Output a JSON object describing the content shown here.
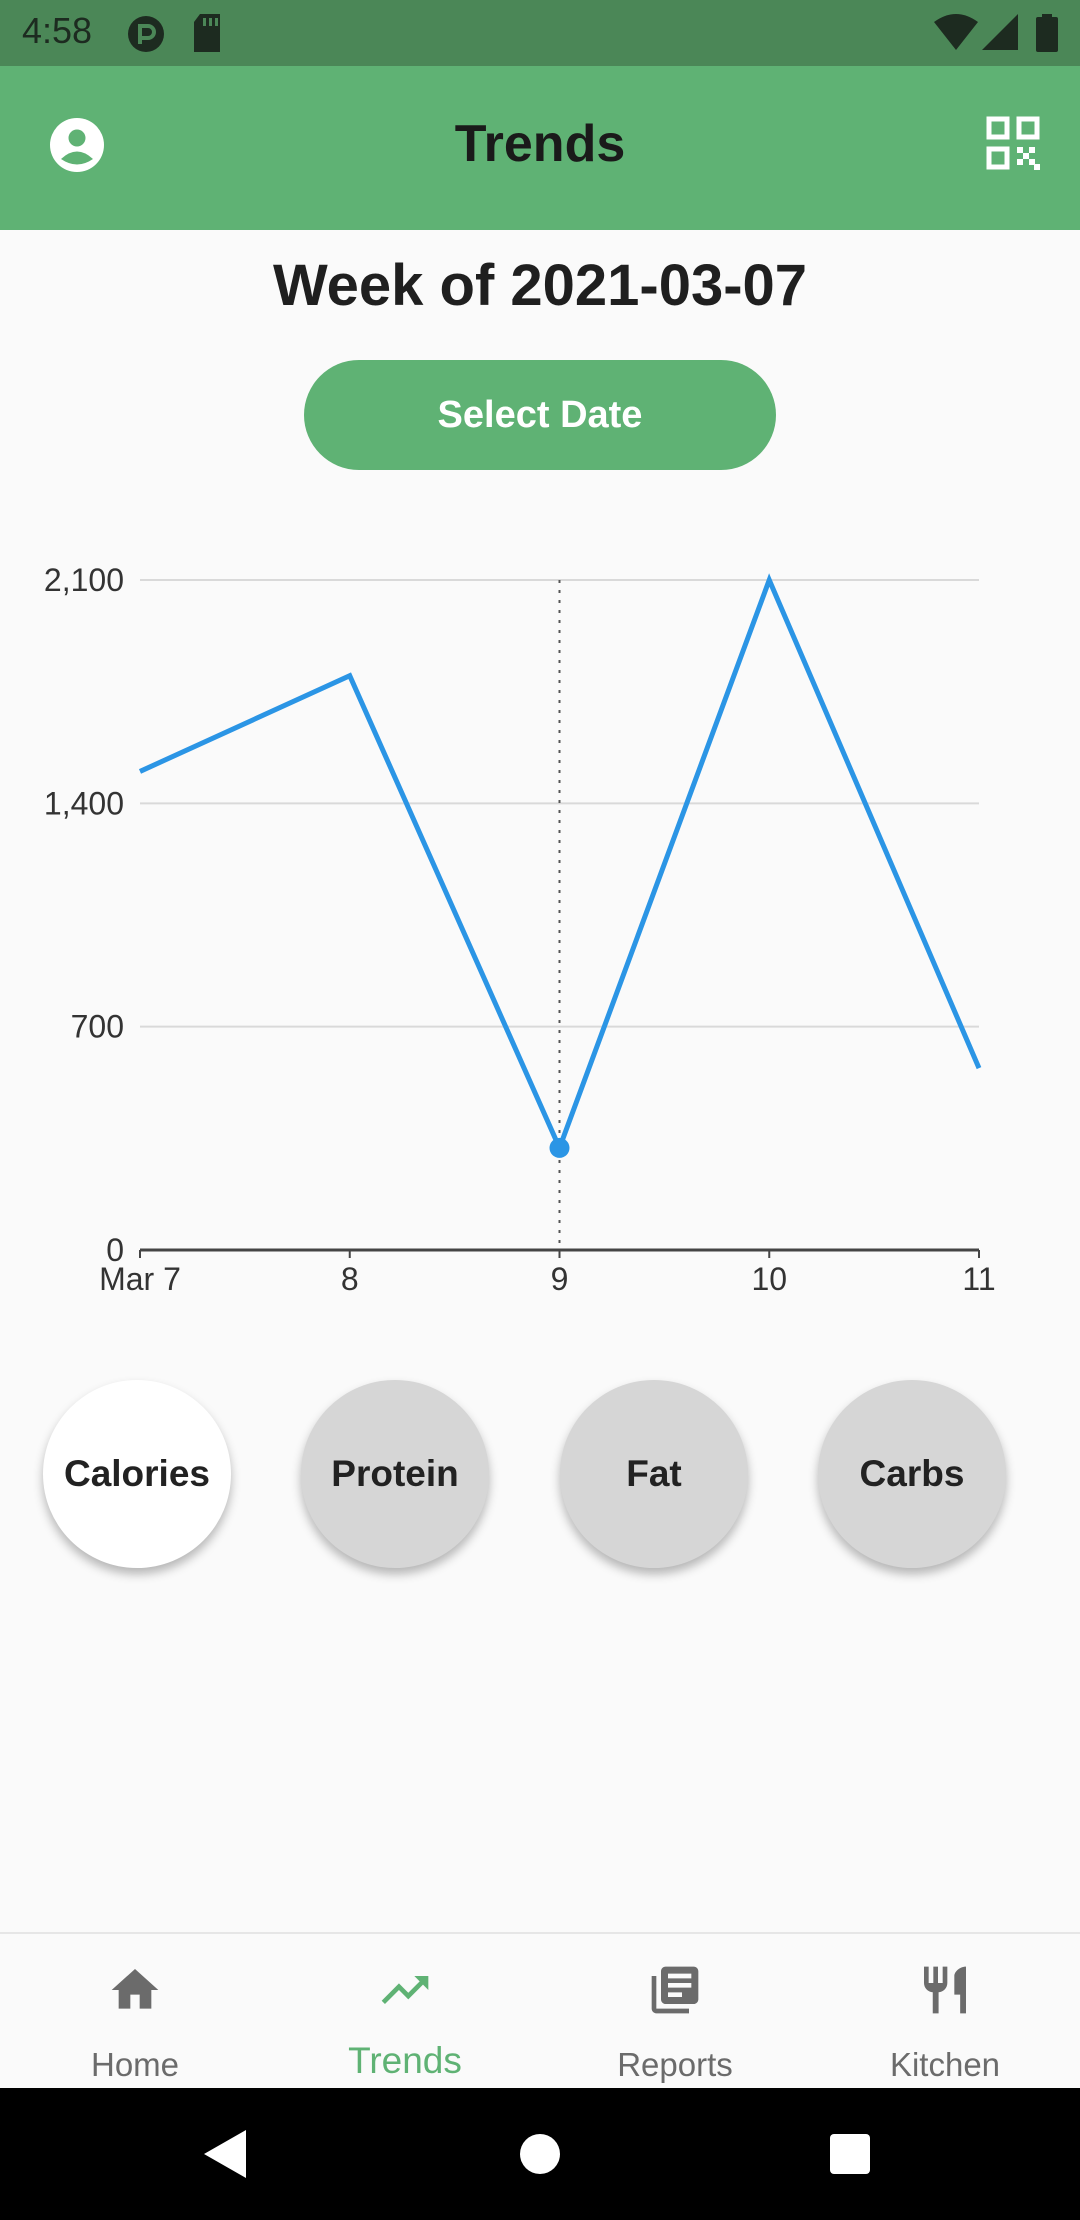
{
  "status_bar": {
    "time": "4:58"
  },
  "app_bar": {
    "title": "Trends"
  },
  "week_label": "Week of 2021-03-07",
  "select_date_label": "Select Date",
  "chart_data": {
    "type": "line",
    "x": [
      "Mar 7",
      "8",
      "9",
      "10",
      "11"
    ],
    "series": [
      {
        "values": [
          1500,
          1800,
          320,
          2100,
          570
        ]
      }
    ],
    "y_ticks": [
      "0",
      "700",
      "1,400",
      "2,100"
    ],
    "ylim": [
      0,
      2100
    ],
    "highlight_index": 2,
    "grid": true,
    "line_color": "#2b95e5"
  },
  "metrics": [
    "Calories",
    "Protein",
    "Fat",
    "Carbs"
  ],
  "active_metric": "Calories",
  "bottom_nav": [
    {
      "label": "Home",
      "icon": "home-icon"
    },
    {
      "label": "Trends",
      "icon": "trending-up-icon"
    },
    {
      "label": "Reports",
      "icon": "library-books-icon"
    },
    {
      "label": "Kitchen",
      "icon": "restaurant-icon"
    }
  ],
  "colors": {
    "accent": "#5fb274",
    "status_bar": "#4b8757"
  }
}
